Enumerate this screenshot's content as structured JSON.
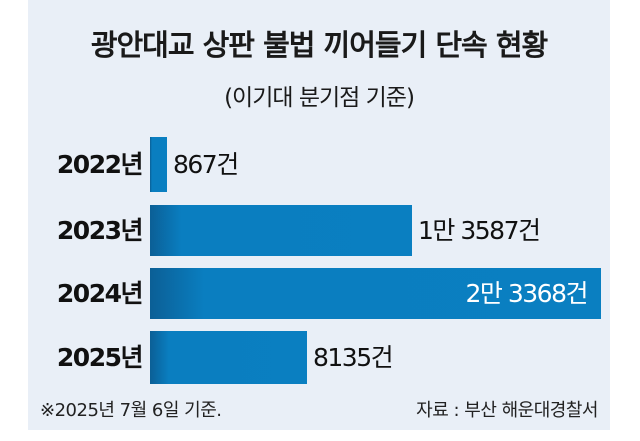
{
  "chart_data": {
    "type": "bar",
    "orientation": "horizontal",
    "title": "광안대교 상판 불법 끼어들기 단속 현황",
    "subtitle": "(이기대 분기점 기준)",
    "categories": [
      "2022년",
      "2023년",
      "2024년",
      "2025년"
    ],
    "values": [
      867,
      13587,
      23368,
      8135
    ],
    "data_labels": [
      "867건",
      "1만 3587건",
      "2만 3368건",
      "8135건"
    ],
    "note": "※2025년 7월 6일 기준.",
    "source": "자료 : 부산 해운대경찰서",
    "bar_color": "#0a7fc1",
    "background_color": "#e9eff7",
    "grid": false
  }
}
